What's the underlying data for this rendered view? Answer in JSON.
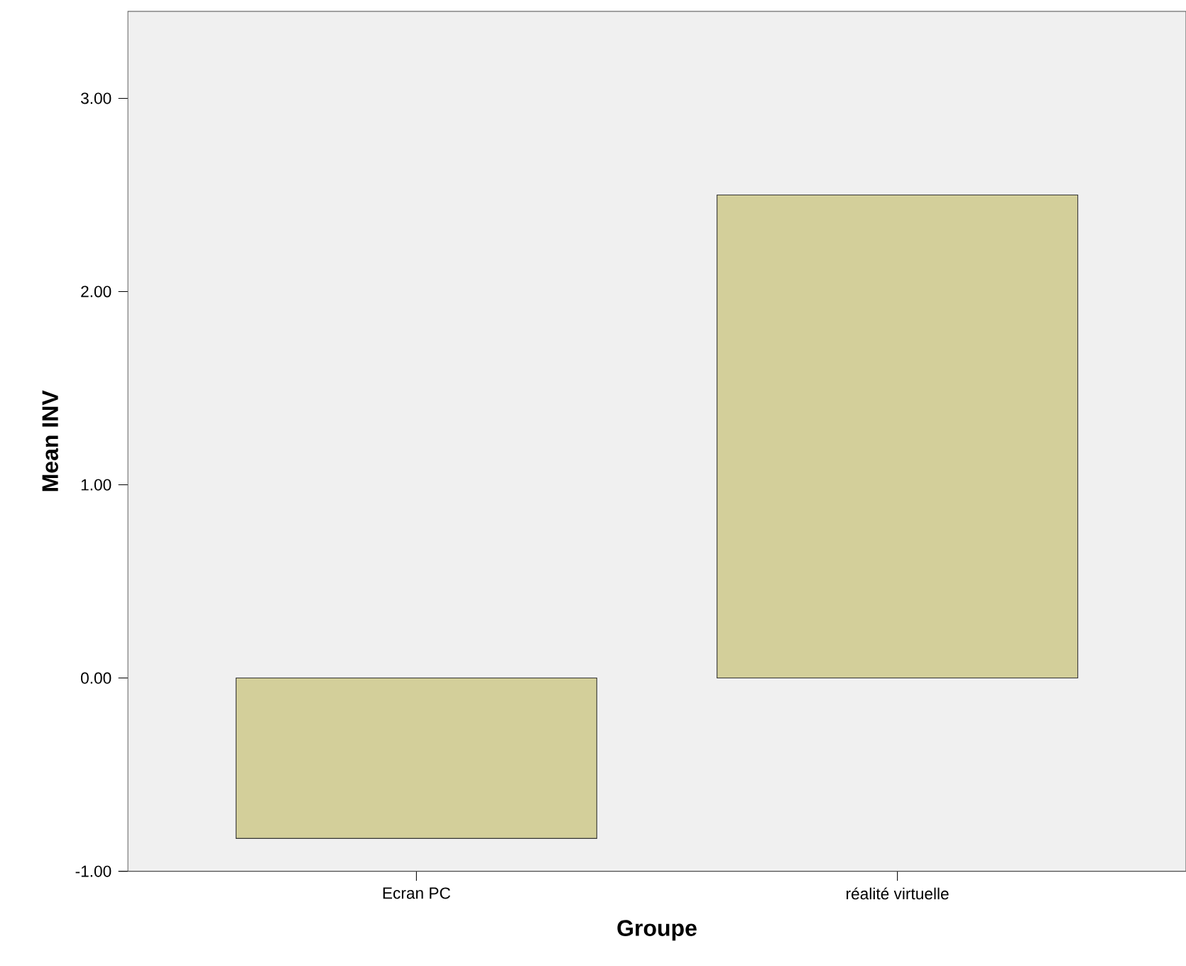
{
  "chart_data": {
    "type": "bar",
    "xlabel": "Groupe",
    "ylabel": "Mean INV",
    "categories": [
      "Ecran PC",
      "réalité virtuelle"
    ],
    "values": [
      -0.83,
      2.5
    ],
    "color": "#d3cf9a",
    "ylim": [
      -1,
      3.45
    ],
    "yticks": [
      {
        "value": -1,
        "label": "-1.00"
      },
      {
        "value": 0,
        "label": "0.00"
      },
      {
        "value": 1,
        "label": "1.00"
      },
      {
        "value": 2,
        "label": "2.00"
      },
      {
        "value": 3,
        "label": "3.00"
      }
    ]
  }
}
